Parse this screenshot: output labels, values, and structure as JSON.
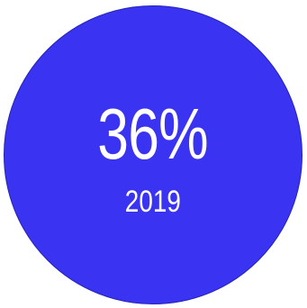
{
  "stat": {
    "value": "36%",
    "year": "2019"
  },
  "colors": {
    "circle_fill": "#3a33f2",
    "circle_border": "#2323b8",
    "text": "#ffffff",
    "background": "#ffffff"
  }
}
